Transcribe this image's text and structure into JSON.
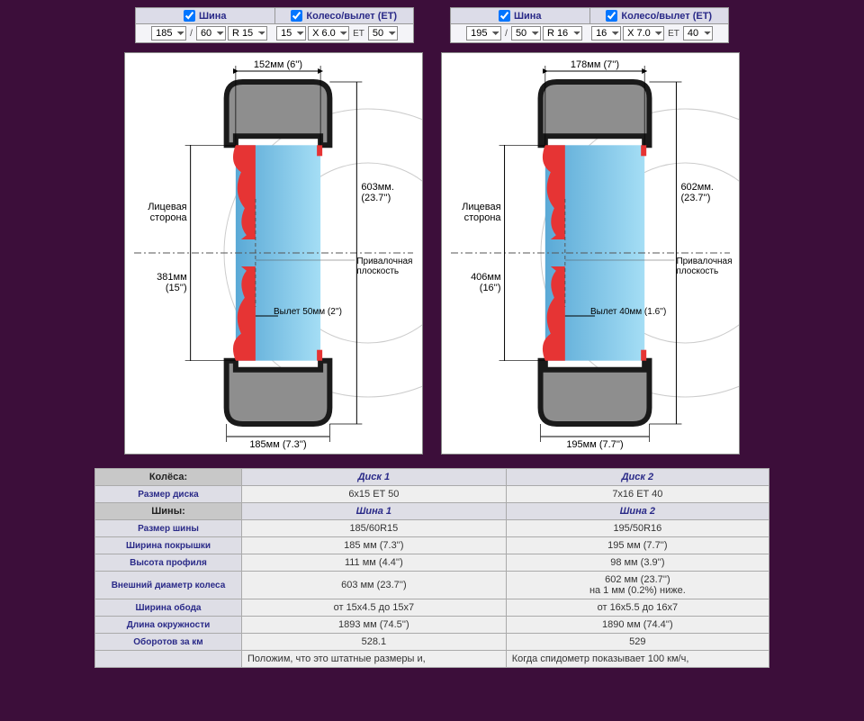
{
  "controls": {
    "tire_label": "Шина",
    "wheel_label": "Колесо/вылет (ET)",
    "left": {
      "width": "185",
      "slash": "/",
      "profile": "60",
      "r": "R 15",
      "rim": "15",
      "x": "X 6.0",
      "et_lbl": "ET",
      "et": "50"
    },
    "right": {
      "width": "195",
      "slash": "/",
      "profile": "50",
      "r": "R 16",
      "rim": "16",
      "x": "X 7.0",
      "et_lbl": "ET",
      "et": "40"
    }
  },
  "diagrams": {
    "left": {
      "rim_w": "152мм (6'')",
      "tire_w": "185мм (7.3'')",
      "outer_d": "603мм. (23.7'')",
      "rim_d": "381мм (15'')",
      "offset": "Вылет 50мм (2'')",
      "face": "Лицевая сторона",
      "mount": "Привалочная плоскость",
      "colors": {
        "tire": "#8e8e8e",
        "tire_stroke": "#1a1a1a",
        "rim_face": "#e63434",
        "hub": "#5aa9d6",
        "hub2": "#a5def5"
      }
    },
    "right": {
      "rim_w": "178мм (7'')",
      "tire_w": "195мм (7.7'')",
      "outer_d": "602мм. (23.7'')",
      "rim_d": "406мм (16'')",
      "offset": "Вылет 40мм (1.6'')",
      "face": "Лицевая сторона",
      "mount": "Привалочная плоскость",
      "colors": {
        "tire": "#8e8e8e",
        "tire_stroke": "#1a1a1a",
        "rim_face": "#e63434",
        "hub": "#5aa9d6",
        "hub2": "#a5def5"
      }
    }
  },
  "table": {
    "wheels_hdr": "Колёса:",
    "disk1": "Диск 1",
    "disk2": "Диск 2",
    "disk_size": "Размер диска",
    "disk_size_1": "6x15 ET 50",
    "disk_size_2": "7x16 ET 40",
    "tires_hdr": "Шины:",
    "tire1": "Шина 1",
    "tire2": "Шина 2",
    "tire_size": "Размер шины",
    "tire_size_1": "185/60R15",
    "tire_size_2": "195/50R16",
    "tread_w": "Ширина покрышки",
    "tread_w_1": "185 мм (7.3'')",
    "tread_w_2": "195 мм (7.7'')",
    "profile_h": "Высота профиля",
    "profile_h_1": "111 мм (4.4'')",
    "profile_h_2": "98 мм (3.9'')",
    "outer_d": "Внешний диаметр колеса",
    "outer_d_1": "603 мм (23.7'')",
    "outer_d_2a": "602 мм (23.7'')",
    "outer_d_2b": "на 1 мм (0.2%) ниже.",
    "rim_w": "Ширина обода",
    "rim_w_1": "от 15x4.5 до 15x7",
    "rim_w_2": "от 16x5.5 до 16x7",
    "circ": "Длина окружности",
    "circ_1": "1893 мм (74.5'')",
    "circ_2": "1890 мм (74.4'')",
    "rpk": "Оборотов за км",
    "rpk_1": "528.1",
    "rpk_2": "529",
    "note_1": "Положим, что это штатные размеры и,",
    "note_2": "Когда спидометр показывает 100 км/ч,"
  }
}
